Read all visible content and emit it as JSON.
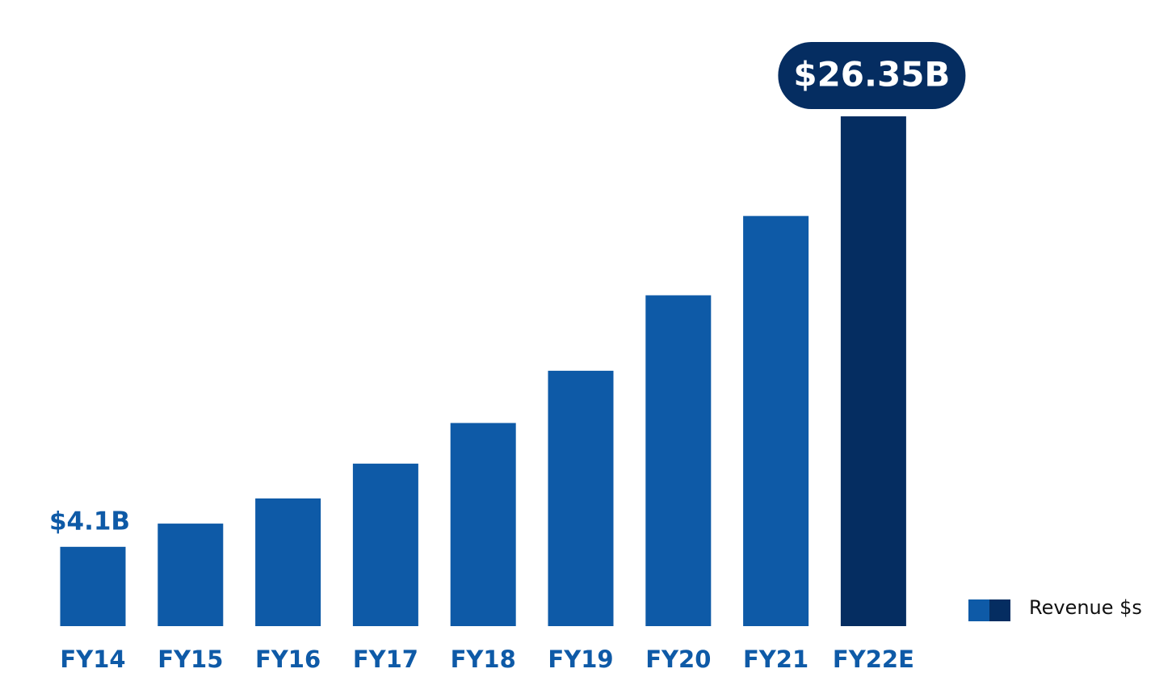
{
  "chart_data": {
    "type": "bar",
    "categories": [
      "FY14",
      "FY15",
      "FY16",
      "FY17",
      "FY18",
      "FY19",
      "FY20",
      "FY21",
      "FY22E"
    ],
    "series": [
      {
        "name": "Revenue $s",
        "values": [
          4.1,
          5.3,
          6.6,
          8.4,
          10.5,
          13.2,
          17.1,
          21.2,
          26.35
        ],
        "value_labels": [
          "$4.1B",
          null,
          null,
          null,
          null,
          null,
          null,
          null,
          "$26.35B"
        ],
        "colors": [
          "#0e5aa7",
          "#0e5aa7",
          "#0e5aa7",
          "#0e5aa7",
          "#0e5aa7",
          "#0e5aa7",
          "#0e5aa7",
          "#0e5aa7",
          "#052d61"
        ]
      }
    ]
  }
}
